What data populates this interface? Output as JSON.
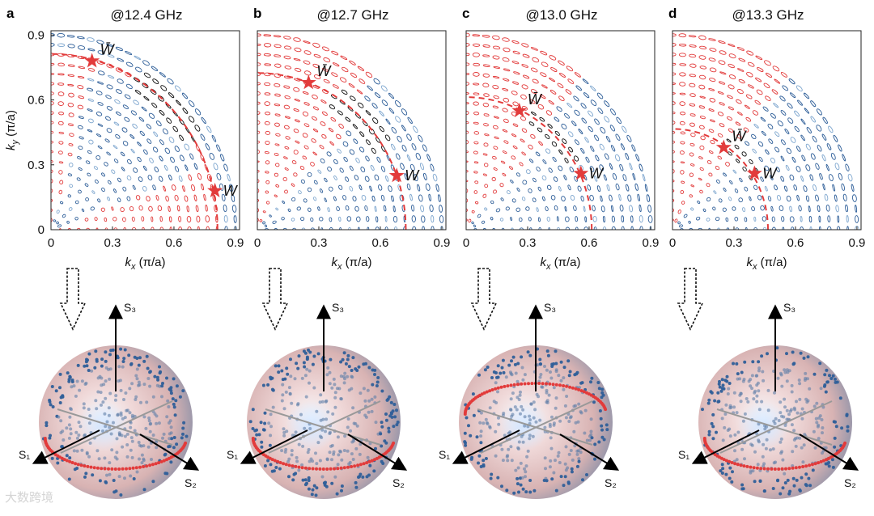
{
  "watermark": "大数跨境",
  "colors": {
    "red": "#e23b3b",
    "blue": "#2f5f99",
    "light_blue": "#7fa7cf",
    "black": "#111111"
  },
  "chart_data": [
    {
      "type": "scatter",
      "panel": "a",
      "title": "@12.4 GHz",
      "xlabel": "k_x (π/a)",
      "ylabel": "k_y (π/a)",
      "xlim": [
        0,
        0.92
      ],
      "ylim": [
        0,
        0.92
      ],
      "xticks": [
        0,
        0.3,
        0.6,
        0.9
      ],
      "yticks": [
        0,
        0.3,
        0.6,
        0.9
      ],
      "points": [
        {
          "name": "W̄",
          "x": 0.2,
          "y": 0.78
        },
        {
          "name": "W",
          "x": 0.8,
          "y": 0.18
        }
      ],
      "sphere_axes": [
        "S₁",
        "S₂",
        "S₃"
      ]
    },
    {
      "type": "scatter",
      "panel": "b",
      "title": "@12.7 GHz",
      "xlabel": "k_x (π/a)",
      "ylabel": "",
      "xlim": [
        0,
        0.92
      ],
      "ylim": [
        0,
        0.92
      ],
      "xticks": [
        0,
        0.3,
        0.6,
        0.9
      ],
      "yticks": [],
      "points": [
        {
          "name": "W̄",
          "x": 0.25,
          "y": 0.68
        },
        {
          "name": "W",
          "x": 0.68,
          "y": 0.25
        }
      ],
      "sphere_axes": [
        "S₁",
        "S₂",
        "S₃"
      ]
    },
    {
      "type": "scatter",
      "panel": "c",
      "title": "@13.0 GHz",
      "xlabel": "k_x (π/a)",
      "ylabel": "",
      "xlim": [
        0,
        0.92
      ],
      "ylim": [
        0,
        0.92
      ],
      "xticks": [
        0,
        0.3,
        0.6,
        0.9
      ],
      "yticks": [],
      "points": [
        {
          "name": "W̄",
          "x": 0.26,
          "y": 0.55
        },
        {
          "name": "W",
          "x": 0.56,
          "y": 0.26
        }
      ],
      "sphere_axes": [
        "S₁",
        "S₂",
        "S₃"
      ]
    },
    {
      "type": "scatter",
      "panel": "d",
      "title": "@13.3 GHz",
      "xlabel": "k_x (π/a)",
      "ylabel": "",
      "xlim": [
        0,
        0.92
      ],
      "ylim": [
        0,
        0.92
      ],
      "xticks": [
        0,
        0.3,
        0.6,
        0.9
      ],
      "yticks": [],
      "points": [
        {
          "name": "W̄",
          "x": 0.25,
          "y": 0.38
        },
        {
          "name": "W",
          "x": 0.4,
          "y": 0.26
        }
      ],
      "sphere_axes": [
        "S₁",
        "S₂",
        "S₃"
      ]
    }
  ]
}
